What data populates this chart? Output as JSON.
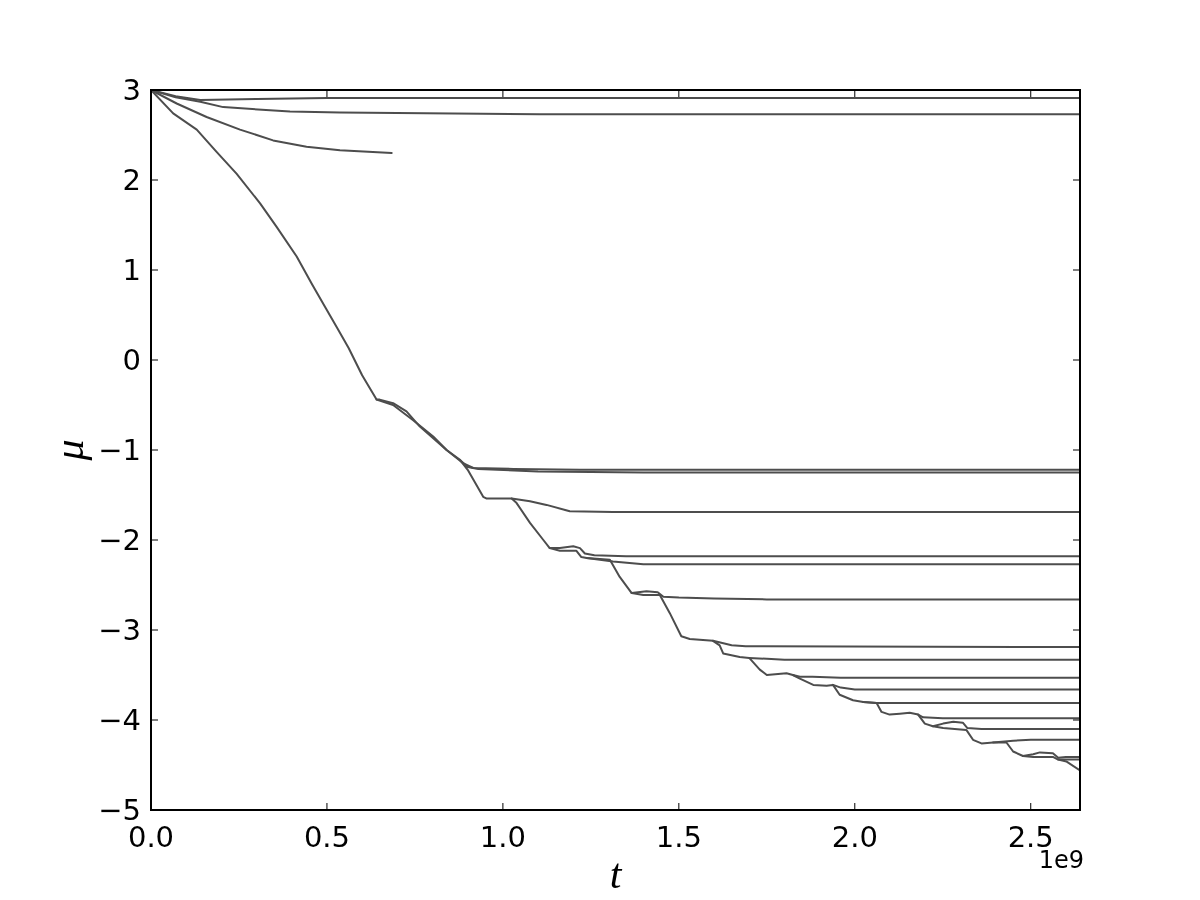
{
  "chart_data": {
    "type": "line",
    "xlabel": "t",
    "ylabel": "μ",
    "annotations": [
      "1e9"
    ],
    "xlim": [
      0,
      2.64
    ],
    "ylim": [
      -5,
      3
    ],
    "xticks": [
      {
        "value": 0,
        "label": "0.0"
      },
      0.5,
      {
        "value": 1,
        "label": "1.0"
      },
      1.5,
      {
        "value": 2,
        "label": "2.0"
      },
      2.5
    ],
    "yticks": [
      {
        "value": -5,
        "label": "−5"
      },
      {
        "value": -4,
        "label": "−4"
      },
      {
        "value": -3,
        "label": "−3"
      },
      {
        "value": -2,
        "label": "−2"
      },
      {
        "value": -1,
        "label": "−1"
      },
      0,
      1,
      2,
      3
    ],
    "series": [
      {
        "color": "#4d4d4d",
        "x": [
          0,
          0.07,
          0.14,
          0.3,
          0.5,
          2.64
        ],
        "values": [
          3,
          2.93,
          2.89,
          2.9,
          2.91,
          2.91
        ]
      },
      {
        "color": "#4d4d4d",
        "x": [
          0,
          0.07,
          0.14,
          0.205,
          0.395,
          0.537,
          1.105,
          2.64
        ],
        "values": [
          3,
          2.92,
          2.87,
          2.81,
          2.76,
          2.75,
          2.73,
          2.73
        ]
      },
      {
        "color": "#4d4d4d",
        "x": [
          0,
          0.073,
          0.158,
          0.253,
          0.347,
          0.442,
          0.537,
          0.684
        ],
        "values": [
          3,
          2.85,
          2.7,
          2.56,
          2.44,
          2.37,
          2.33,
          2.3
        ]
      },
      {
        "color": "#4d4d4d",
        "x": [
          0,
          0.063,
          0.13,
          0.187,
          0.243,
          0.31,
          0.357,
          0.414,
          0.458,
          0.496,
          0.53,
          0.562,
          0.6,
          0.641,
          0.688,
          0.745,
          0.802,
          0.84,
          0.878,
          0.9,
          0.944,
          0.954,
          1.025,
          1.039,
          1.077,
          1.115,
          1.133,
          1.162,
          1.209,
          1.223,
          1.238,
          1.304,
          1.332,
          1.366,
          1.399,
          1.446,
          1.474,
          1.507,
          1.531,
          1.597,
          1.616,
          1.626,
          1.673,
          1.7,
          1.73,
          1.75,
          1.806,
          1.824,
          1.844,
          1.882,
          1.92,
          1.938,
          1.957,
          1.995,
          2.024,
          2.062,
          2.076,
          2.099,
          2.128,
          2.156,
          2.18,
          2.199,
          2.222,
          2.251,
          2.317,
          2.336,
          2.36,
          2.393,
          2.431,
          2.45,
          2.478,
          2.507,
          2.563,
          2.578,
          2.601,
          2.64
        ],
        "values": [
          3,
          2.74,
          2.56,
          2.31,
          2.07,
          1.74,
          1.48,
          1.15,
          0.84,
          0.58,
          0.35,
          0.13,
          -0.17,
          -0.44,
          -0.5,
          -0.67,
          -0.85,
          -1.0,
          -1.11,
          -1.22,
          -1.52,
          -1.54,
          -1.54,
          -1.59,
          -1.81,
          -2.0,
          -2.09,
          -2.12,
          -2.12,
          -2.19,
          -2.2,
          -2.22,
          -2.41,
          -2.59,
          -2.61,
          -2.61,
          -2.81,
          -3.07,
          -3.1,
          -3.12,
          -3.17,
          -3.26,
          -3.3,
          -3.31,
          -3.44,
          -3.5,
          -3.48,
          -3.5,
          -3.54,
          -3.61,
          -3.62,
          -3.61,
          -3.72,
          -3.78,
          -3.8,
          -3.81,
          -3.91,
          -3.94,
          -3.93,
          -3.92,
          -3.94,
          -4.04,
          -4.07,
          -4.09,
          -4.11,
          -4.22,
          -4.26,
          -4.25,
          -4.25,
          -4.35,
          -4.4,
          -4.41,
          -4.41,
          -4.44,
          -4.46,
          -4.56
        ]
      },
      {
        "color": "#4d4d4d",
        "x": [
          0.641,
          0.65,
          0.688,
          0.726,
          0.764,
          0.84,
          0.888,
          0.916,
          1.03,
          1.219,
          2.64
        ],
        "values": [
          -0.44,
          -0.44,
          -0.48,
          -0.57,
          -0.74,
          -1.0,
          -1.15,
          -1.2,
          -1.21,
          -1.22,
          -1.22
        ]
      },
      {
        "color": "#4d4d4d",
        "x": [
          0.878,
          0.9,
          0.93,
          1.1,
          1.4,
          2.64
        ],
        "values": [
          -1.11,
          -1.19,
          -1.21,
          -1.24,
          -1.25,
          -1.25
        ]
      },
      {
        "color": "#4d4d4d",
        "x": [
          1.025,
          1.077,
          1.124,
          1.19,
          1.313,
          2.64
        ],
        "values": [
          -1.54,
          -1.57,
          -1.61,
          -1.68,
          -1.69,
          -1.69
        ]
      },
      {
        "color": "#4d4d4d",
        "x": [
          1.133,
          1.162,
          1.2,
          1.219,
          1.233,
          1.26,
          1.35,
          2.64
        ],
        "values": [
          -2.09,
          -2.09,
          -2.07,
          -2.09,
          -2.15,
          -2.17,
          -2.18,
          -2.18
        ]
      },
      {
        "color": "#4d4d4d",
        "x": [
          1.238,
          1.313,
          1.399,
          2.64
        ],
        "values": [
          -2.2,
          -2.24,
          -2.27,
          -2.27
        ]
      },
      {
        "color": "#4d4d4d",
        "x": [
          1.366,
          1.408,
          1.44,
          1.456,
          1.5,
          1.6,
          1.75,
          2.64
        ],
        "values": [
          -2.59,
          -2.57,
          -2.58,
          -2.63,
          -2.64,
          -2.65,
          -2.66,
          -2.66
        ]
      },
      {
        "color": "#4d4d4d",
        "x": [
          1.597,
          1.65,
          1.69,
          2.64
        ],
        "values": [
          -3.12,
          -3.17,
          -3.18,
          -3.19
        ]
      },
      {
        "color": "#4d4d4d",
        "x": [
          1.7,
          1.75,
          1.8,
          2.64
        ],
        "values": [
          -3.31,
          -3.32,
          -3.33,
          -3.33
        ]
      },
      {
        "color": "#4d4d4d",
        "x": [
          1.824,
          1.844,
          1.88,
          1.96,
          2.64
        ],
        "values": [
          -3.5,
          -3.52,
          -3.52,
          -3.53,
          -3.53
        ]
      },
      {
        "color": "#4d4d4d",
        "x": [
          1.938,
          1.96,
          2.0,
          2.64
        ],
        "values": [
          -3.61,
          -3.64,
          -3.66,
          -3.66
        ]
      },
      {
        "color": "#4d4d4d",
        "x": [
          2.024,
          2.062,
          2.64
        ],
        "values": [
          -3.8,
          -3.81,
          -3.81
        ]
      },
      {
        "color": "#4d4d4d",
        "x": [
          2.18,
          2.194,
          2.25,
          2.64
        ],
        "values": [
          -3.94,
          -3.97,
          -3.98,
          -3.98
        ]
      },
      {
        "color": "#4d4d4d",
        "x": [
          2.222,
          2.251,
          2.28,
          2.307,
          2.32,
          2.36,
          2.64
        ],
        "values": [
          -4.07,
          -4.04,
          -4.02,
          -4.03,
          -4.09,
          -4.1,
          -4.1
        ]
      },
      {
        "color": "#4d4d4d",
        "x": [
          2.393,
          2.45,
          2.5,
          2.64
        ],
        "values": [
          -4.25,
          -4.23,
          -4.22,
          -4.22
        ]
      },
      {
        "color": "#4d4d4d",
        "x": [
          2.478,
          2.507,
          2.526,
          2.563,
          2.578,
          2.6,
          2.64
        ],
        "values": [
          -4.4,
          -4.38,
          -4.36,
          -4.37,
          -4.42,
          -4.41,
          -4.41
        ]
      },
      {
        "color": "#4d4d4d",
        "x": [
          2.578,
          2.61,
          2.64
        ],
        "values": [
          -4.44,
          -4.44,
          -4.44
        ]
      }
    ]
  }
}
